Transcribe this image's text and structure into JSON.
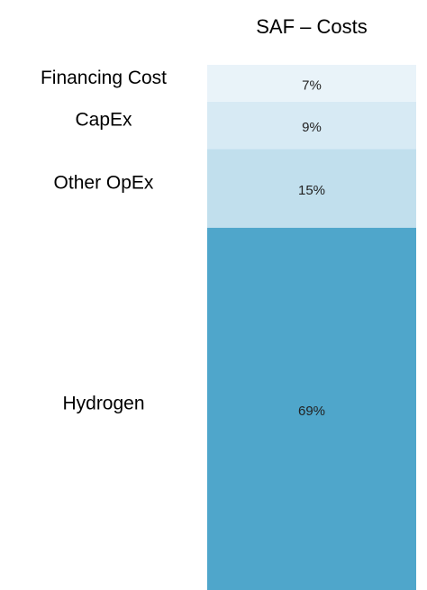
{
  "chart_data": {
    "type": "stacked_bar",
    "title": "SAF – Costs",
    "series": [
      {
        "name": "Hydrogen",
        "color": "#4fa6cb",
        "values": [
          69
        ],
        "value_labels": [
          "69%"
        ]
      },
      {
        "name": "Other OpEx",
        "color": "#c1dfed",
        "values": [
          15
        ],
        "value_labels": [
          "15%"
        ]
      },
      {
        "name": "CapEx",
        "color": "#d7eaf4",
        "values": [
          9
        ],
        "value_labels": [
          "9%"
        ]
      },
      {
        "name": "Financing Cost",
        "color": "#e9f3f9",
        "values": [
          7
        ],
        "value_labels": [
          "7%"
        ]
      }
    ]
  }
}
